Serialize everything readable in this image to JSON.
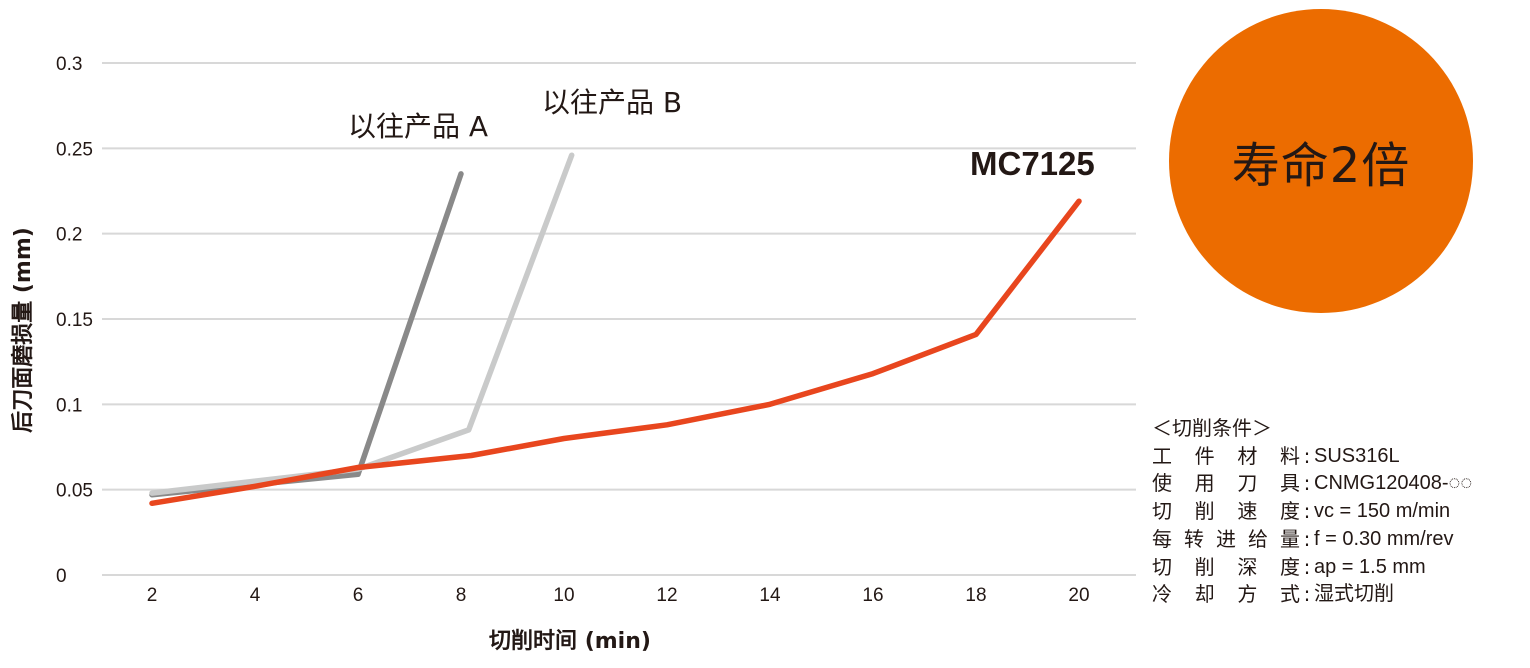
{
  "chart_data": {
    "type": "line",
    "xlabel": "切削时间 (min)",
    "ylabel": "后刀面磨损量 (mm)",
    "xticks": [
      2,
      4,
      6,
      8,
      10,
      12,
      14,
      16,
      18,
      20
    ],
    "yticks": [
      "0",
      "0.05",
      "0.1",
      "0.15",
      "0.2",
      "0.25",
      "0.3"
    ],
    "ylim": [
      0,
      0.3
    ],
    "grid": true,
    "series": [
      {
        "name": "以往产品 A",
        "color": "#898989",
        "points": [
          [
            2,
            0.047
          ],
          [
            6,
            0.059
          ],
          [
            8,
            0.235
          ]
        ]
      },
      {
        "name": "以往产品 B",
        "color": "#c9caca",
        "points": [
          [
            2,
            0.048
          ],
          [
            6,
            0.062
          ],
          [
            8.15,
            0.085
          ],
          [
            10.15,
            0.246
          ]
        ]
      },
      {
        "name": "MC7125",
        "color": "#e8461e",
        "points": [
          [
            2,
            0.042
          ],
          [
            4,
            0.052
          ],
          [
            6,
            0.063
          ],
          [
            8.2,
            0.07
          ],
          [
            10,
            0.08
          ],
          [
            12,
            0.088
          ],
          [
            14,
            0.1
          ],
          [
            16,
            0.118
          ],
          [
            18,
            0.141
          ],
          [
            20,
            0.219
          ]
        ]
      }
    ]
  },
  "badge": {
    "text": "寿命2倍",
    "color": "#ec6c00"
  },
  "conditions": {
    "title": "＜切削条件＞",
    "rows": [
      {
        "key": [
          "工",
          "件",
          "材",
          "料"
        ],
        "value": "SUS316L"
      },
      {
        "key": [
          "使",
          "用",
          "刀",
          "具"
        ],
        "value": "CNMG120408-◌◌"
      },
      {
        "key": [
          "切",
          "削",
          "速",
          "度"
        ],
        "value": "vc = 150 m/min"
      },
      {
        "key": [
          "每",
          "转",
          "进",
          "给",
          "量"
        ],
        "value": "f = 0.30 mm/rev"
      },
      {
        "key": [
          "切",
          "削",
          "深",
          "度"
        ],
        "value": "ap = 1.5 mm"
      },
      {
        "key": [
          "冷",
          "却",
          "方",
          "式"
        ],
        "value": "湿式切削"
      }
    ]
  }
}
